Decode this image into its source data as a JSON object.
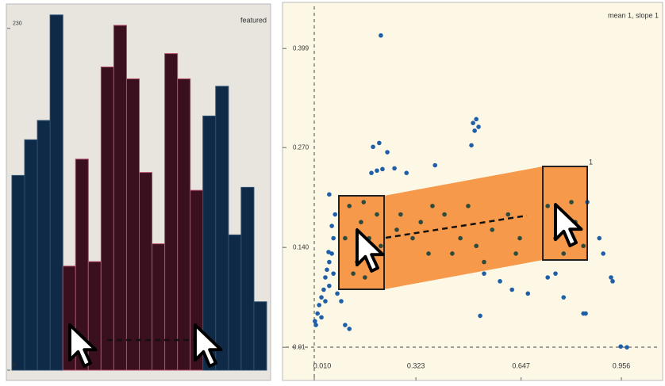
{
  "chart_data": [
    {
      "type": "bar",
      "title": "featured",
      "values": [
        131,
        155,
        168,
        239,
        70,
        142,
        73,
        204,
        232,
        196,
        133,
        85,
        213,
        196,
        121,
        171,
        191,
        91,
        123,
        46
      ],
      "colors": [
        "#0f2a47",
        "#0f2a47",
        "#0f2a47",
        "#0f2a47",
        "#3a0f1e",
        "#3a0f1e",
        "#3a0f1e",
        "#3a0f1e",
        "#3a0f1e",
        "#3a0f1e",
        "#3a0f1e",
        "#3a0f1e",
        "#3a0f1e",
        "#3a0f1e",
        "#3a0f1e",
        "#0f2a47",
        "#0f2a47",
        "#0f2a47",
        "#0f2a47",
        "#0f2a47"
      ],
      "ylim": [
        0,
        240
      ],
      "yticks": [
        0,
        230
      ]
    },
    {
      "type": "scatter",
      "title": "mean 1, slope 1",
      "annotations": [
        "1"
      ],
      "series": [
        {
          "color": "#1f5fa8",
          "x": [
            0.015,
            0.02,
            0.025,
            0.032,
            0.039,
            0.044,
            0.049,
            0.056,
            0.064,
            0.054,
            0.069,
            0.081,
            0.093,
            0.032,
            0.012,
            0.044,
            0.056,
            0.069,
            0.064,
            0.056,
            0.074,
            0.105,
            0.118,
            0.191,
            0.21,
            0.235,
            0.203,
            0.186,
            0.22,
            0.257,
            0.294,
            0.382,
            0.509,
            0.499,
            0.516,
            0.504,
            0.494,
            0.215,
            0.533,
            0.582,
            0.619,
            0.668,
            0.729,
            0.753,
            0.778,
            0.839,
            0.846,
            0.521,
            0.851,
            0.888,
            0.9,
            0.924,
            0.929,
            0.954,
            0.973
          ],
          "values": [
            0.039,
            0.054,
            0.065,
            0.075,
            0.085,
            0.101,
            0.111,
            0.121,
            0.132,
            0.134,
            0.106,
            0.08,
            0.07,
            0.049,
            0.044,
            0.07,
            0.09,
            0.152,
            0.168,
            0.209,
            0.183,
            0.039,
            0.034,
            0.271,
            0.276,
            0.264,
            0.24,
            0.237,
            0.242,
            0.243,
            0.237,
            0.247,
            0.307,
            0.302,
            0.297,
            0.292,
            0.273,
            0.416,
            0.106,
            0.096,
            0.085,
            0.08,
            0.101,
            0.106,
            0.075,
            0.054,
            0.054,
            0.051,
            0.199,
            0.152,
            0.132,
            0.101,
            0.096,
            0.011,
            0.01
          ]
        },
        {
          "color": "#2d4a3c",
          "x": [
            0.118,
            0.154,
            0.179,
            0.191,
            0.142,
            0.13,
            0.166,
            0.203,
            0.215,
            0.105,
            0.162,
            0.264,
            0.313,
            0.362,
            0.411,
            0.46,
            0.509,
            0.558,
            0.607,
            0.643,
            0.338,
            0.435,
            0.533,
            0.484,
            0.631,
            0.276,
            0.374,
            0.729,
            0.753,
            0.802,
            0.814,
            0.778,
            0.839
          ],
          "values": [
            0.194,
            0.173,
            0.152,
            0.132,
            0.121,
            0.106,
            0.101,
            0.183,
            0.142,
            0.152,
            0.199,
            0.163,
            0.152,
            0.132,
            0.183,
            0.152,
            0.142,
            0.163,
            0.183,
            0.152,
            0.173,
            0.132,
            0.121,
            0.194,
            0.132,
            0.183,
            0.194,
            0.194,
            0.152,
            0.199,
            0.173,
            0.132,
            0.142
          ]
        }
      ],
      "xlim": [
        -0.083,
        1.083
      ],
      "ylim": [
        -0.028,
        0.457
      ],
      "xticks": [
        {
          "value": 0.01,
          "label": "0.010"
        },
        0.323,
        0.647,
        0.956
      ],
      "yticks": [
        0.01,
        {
          "value": 0.14,
          "label": "0.140"
        },
        {
          "value": 0.27,
          "label": "0.270"
        },
        0.399
      ]
    }
  ]
}
